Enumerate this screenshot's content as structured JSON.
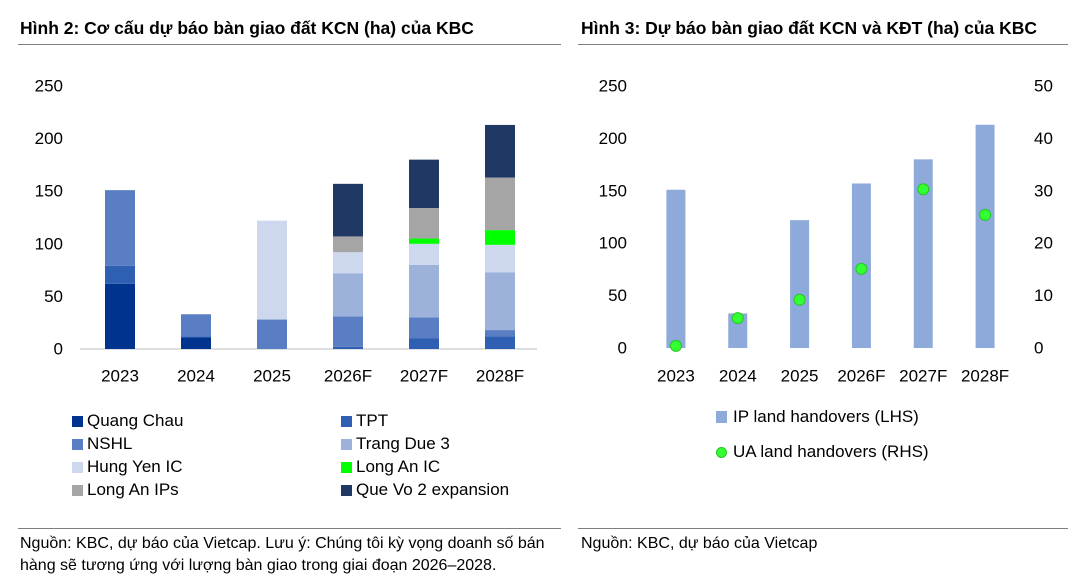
{
  "chart_data": [
    {
      "type": "bar",
      "stacked": true,
      "title": "Hình 2: Cơ cấu dự báo bàn giao đất KCN (ha) của KBC",
      "categories": [
        "2023",
        "2024",
        "2025",
        "2026F",
        "2027F",
        "2028F"
      ],
      "ylim": [
        0,
        250
      ],
      "yticks": [
        0,
        50,
        100,
        150,
        200,
        250
      ],
      "grid": false,
      "legend_position": "bottom",
      "series": [
        {
          "name": "Quang Chau",
          "color": "#00338d",
          "values": [
            62,
            11,
            0,
            0,
            0,
            0
          ]
        },
        {
          "name": "TPT",
          "color": "#2f5fb3",
          "values": [
            17,
            1,
            0,
            2,
            10,
            12
          ]
        },
        {
          "name": "NSHL",
          "color": "#5a7ec3",
          "values": [
            72,
            21,
            28,
            29,
            20,
            6
          ]
        },
        {
          "name": "Trang Due 3",
          "color": "#9cb2db",
          "values": [
            0,
            0,
            0,
            41,
            50,
            55
          ]
        },
        {
          "name": "Hung Yen IC",
          "color": "#cdd7ee",
          "values": [
            0,
            0,
            94,
            20,
            20,
            26
          ]
        },
        {
          "name": "Long An IC",
          "color": "#00ff00",
          "values": [
            0,
            0,
            0,
            0,
            5,
            14
          ]
        },
        {
          "name": "Long An IPs",
          "color": "#a5a5a5",
          "values": [
            0,
            0,
            0,
            15,
            29,
            50
          ]
        },
        {
          "name": "Que Vo 2 expansion",
          "color": "#1f3864",
          "values": [
            0,
            0,
            0,
            50,
            46,
            50
          ]
        }
      ],
      "source_lines": [
        "Nguồn: KBC, dự báo của Vietcap. Lưu ý: Chúng tôi kỳ vọng doanh số bán",
        "hàng sẽ tương ứng với lượng bàn giao trong giai đoạn 2026–2028."
      ]
    },
    {
      "type": "bar",
      "title": "Hình 3: Dự báo bàn giao đất KCN và KĐT (ha) của KBC",
      "categories": [
        "2023",
        "2024",
        "2025",
        "2026F",
        "2027F",
        "2028F"
      ],
      "ylim": [
        0,
        250
      ],
      "yticks": [
        0,
        50,
        100,
        150,
        200,
        250
      ],
      "y2lim": [
        0,
        50
      ],
      "y2ticks": [
        0,
        10,
        20,
        30,
        40,
        50
      ],
      "grid": false,
      "legend_position": "bottom",
      "series": [
        {
          "name": "IP land handovers (LHS)",
          "type": "bar",
          "axis": "left",
          "color": "#8eaadb",
          "values": [
            151,
            33,
            122,
            157,
            180,
            213
          ]
        },
        {
          "name": "UA land handovers (RHS)",
          "type": "scatter",
          "axis": "right",
          "color": "#33ff33",
          "values": [
            0.4,
            5.7,
            9.2,
            15.1,
            30.3,
            25.4
          ]
        }
      ],
      "source_lines": [
        "Nguồn: KBC, dự báo của Vietcap"
      ]
    }
  ]
}
